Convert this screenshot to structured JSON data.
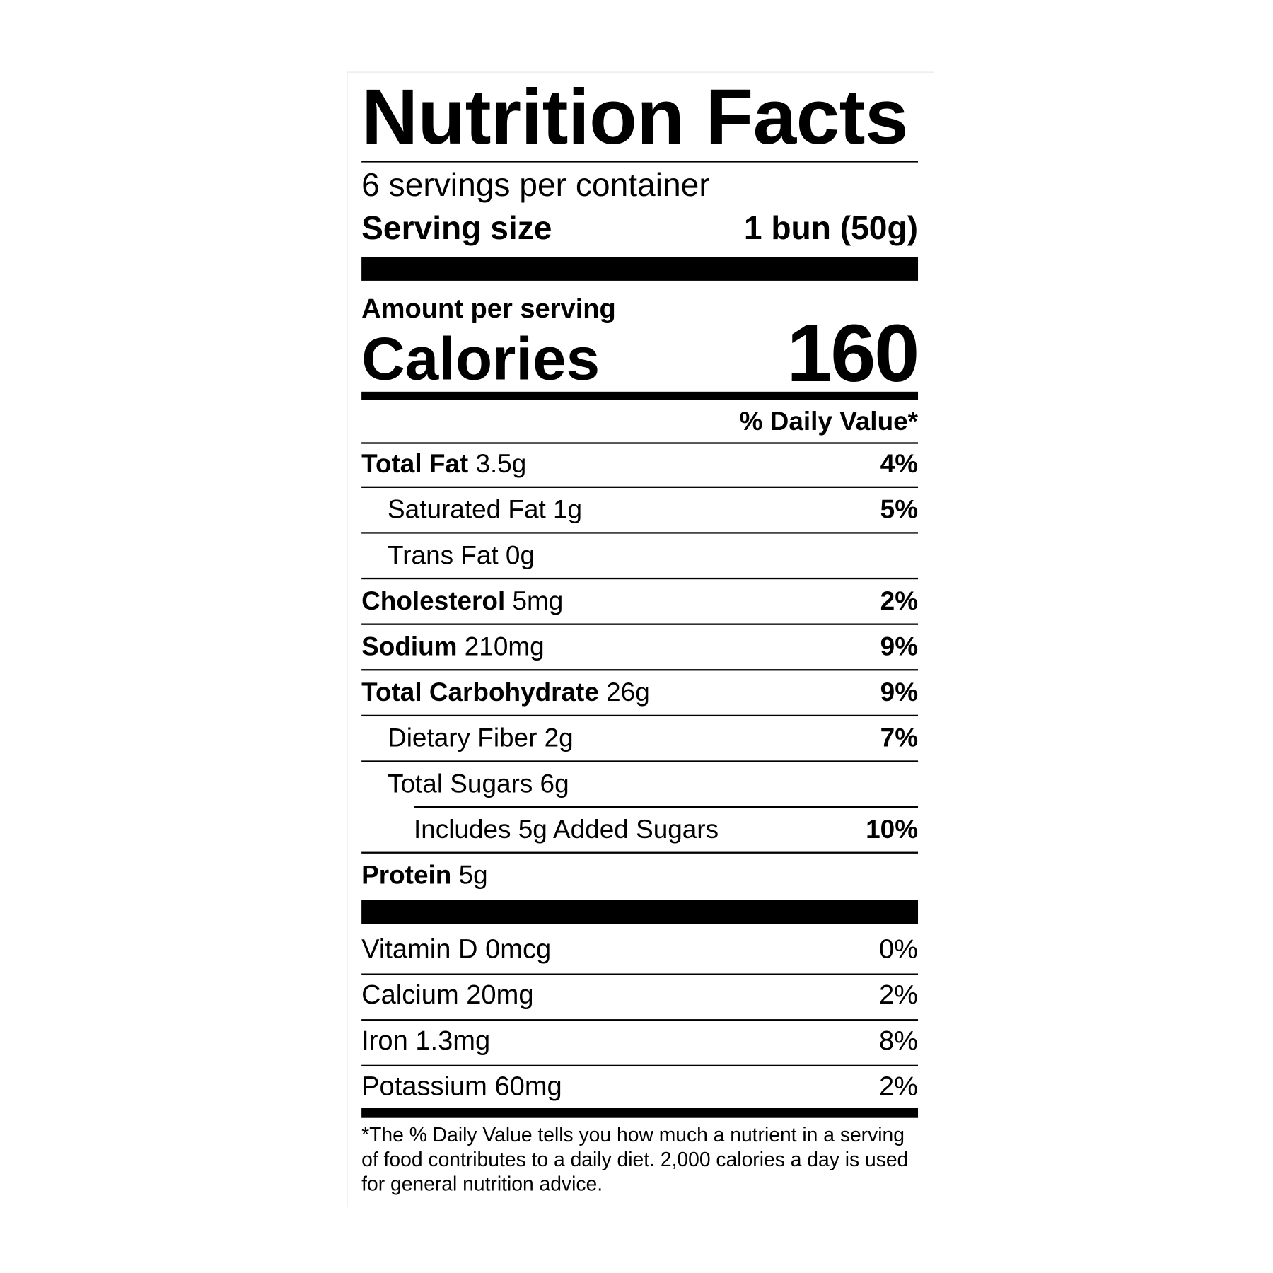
{
  "label": {
    "title": "Nutrition Facts",
    "servings_per_container": "6 servings per container",
    "serving_size_label": "Serving size",
    "serving_size_value": "1 bun (50g)",
    "amount_per_serving": "Amount per serving",
    "calories_label": "Calories",
    "calories_value": "160",
    "daily_value_header": "% Daily Value*",
    "nutrients": [
      {
        "name": "Total Fat",
        "amount": "3.5g",
        "dv": "4%"
      },
      {
        "name": "Saturated Fat",
        "amount": "1g",
        "dv": "5%"
      },
      {
        "name": "Trans Fat",
        "amount": "0g",
        "dv": ""
      },
      {
        "name": "Cholesterol",
        "amount": "5mg",
        "dv": "2%"
      },
      {
        "name": "Sodium",
        "amount": "210mg",
        "dv": "9%"
      },
      {
        "name": "Total Carbohydrate",
        "amount": "26g",
        "dv": "9%"
      },
      {
        "name": "Dietary Fiber",
        "amount": "2g",
        "dv": "7%"
      },
      {
        "name": "Total Sugars",
        "amount": "6g",
        "dv": ""
      },
      {
        "name": "Includes 5g Added Sugars",
        "amount": "",
        "dv": "10%"
      },
      {
        "name": "Protein",
        "amount": "5g",
        "dv": ""
      }
    ],
    "vitamins": [
      {
        "name": "Vitamin D",
        "amount": "0mcg",
        "dv": "0%"
      },
      {
        "name": "Calcium",
        "amount": "20mg",
        "dv": "2%"
      },
      {
        "name": "Iron",
        "amount": "1.3mg",
        "dv": "8%"
      },
      {
        "name": "Potassium",
        "amount": "60mg",
        "dv": "2%"
      }
    ],
    "footnote": "*The % Daily Value tells you how much a nutrient in a serving of food contributes to a daily diet. 2,000 calories a day is used for general nutrition advice."
  }
}
